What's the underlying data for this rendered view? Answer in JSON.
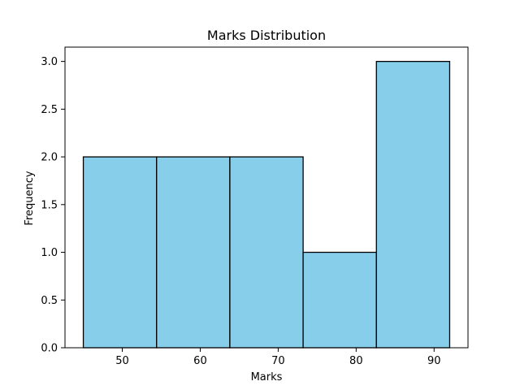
{
  "chart_data": {
    "type": "bar",
    "title": "Marks Distribution",
    "xlabel": "Marks",
    "ylabel": "Frequency",
    "bins": [
      {
        "start": 45,
        "end": 54.4,
        "value": 2
      },
      {
        "start": 54.4,
        "end": 63.8,
        "value": 2
      },
      {
        "start": 63.8,
        "end": 73.2,
        "value": 2
      },
      {
        "start": 73.2,
        "end": 82.6,
        "value": 1
      },
      {
        "start": 82.6,
        "end": 92,
        "value": 3
      }
    ],
    "xlim": [
      42.65,
      94.35
    ],
    "ylim": [
      0,
      3.15
    ],
    "x_ticks": [
      50,
      60,
      70,
      80,
      90
    ],
    "x_tick_labels": [
      "50",
      "60",
      "70",
      "80",
      "90"
    ],
    "y_ticks": [
      0.0,
      0.5,
      1.0,
      1.5,
      2.0,
      2.5,
      3.0
    ],
    "y_tick_labels": [
      "0.0",
      "0.5",
      "1.0",
      "1.5",
      "2.0",
      "2.5",
      "3.0"
    ],
    "bar_color": "#87ceeb",
    "edge_color": "#000000",
    "grid": false,
    "legend": "none"
  }
}
